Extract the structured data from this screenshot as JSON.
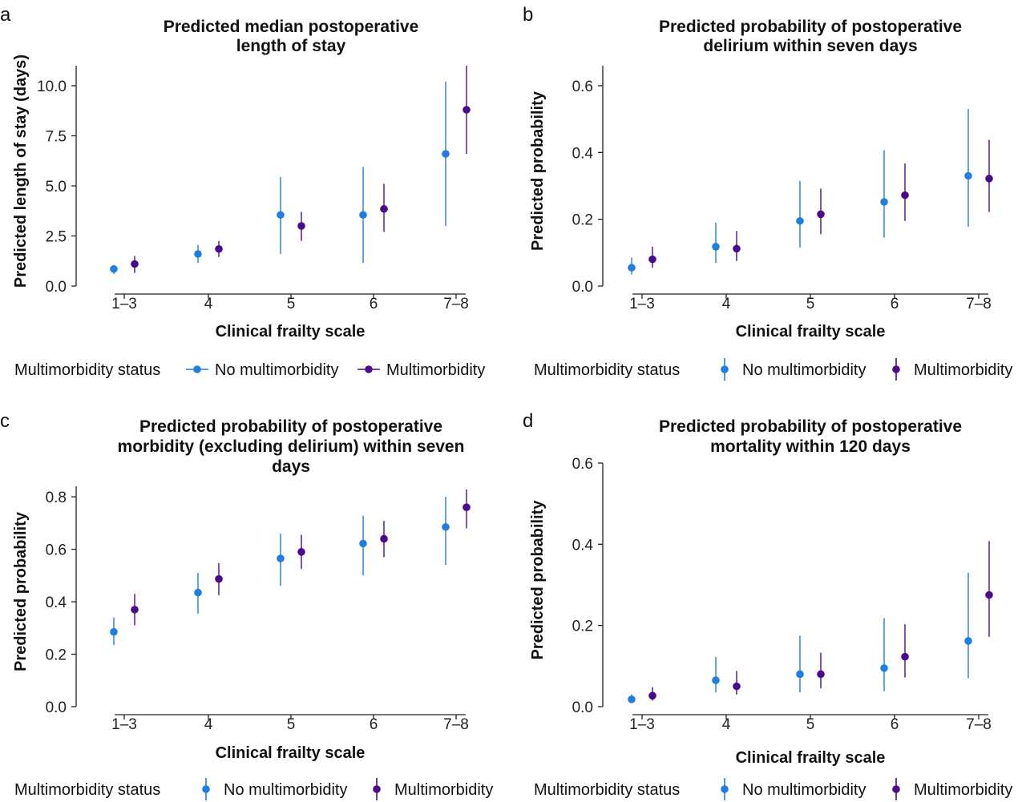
{
  "figure": {
    "legend_title": "Multimorbidity status",
    "colors": {
      "no_multimorbidity": "#1f7fe0",
      "multimorbidity": "#4b0a8a"
    }
  },
  "chart_data": [
    {
      "panel": "a",
      "type": "scatter",
      "title_lines": [
        "Predicted median postoperative",
        "length of stay"
      ],
      "xlabel": "Clinical frailty scale",
      "ylabel": "Predicted length of stay (days)",
      "categories": [
        "1–3",
        "4",
        "5",
        "6",
        "7–8"
      ],
      "ylim": [
        0,
        11
      ],
      "yticks": [
        0,
        2.5,
        5,
        7.5,
        10
      ],
      "ytick_labels": [
        "0.0",
        "2.5",
        "5.0",
        "7.5",
        "10.0"
      ],
      "legend_style": "line",
      "series": [
        {
          "name": "No multimorbidity",
          "color": "#1f7fe0",
          "values": [
            0.85,
            1.6,
            3.55,
            3.55,
            6.6
          ],
          "lower": [
            0.6,
            1.15,
            1.6,
            1.15,
            3.0
          ],
          "upper": [
            1.05,
            2.05,
            5.45,
            5.95,
            10.2
          ]
        },
        {
          "name": "Multimorbidity",
          "color": "#4b0a8a",
          "values": [
            1.1,
            1.85,
            3.0,
            3.85,
            8.8
          ],
          "lower": [
            0.65,
            1.45,
            2.25,
            2.7,
            6.6
          ],
          "upper": [
            1.5,
            2.25,
            3.7,
            5.1,
            11.0
          ]
        }
      ]
    },
    {
      "panel": "b",
      "type": "scatter",
      "title_lines": [
        "Predicted probability of postoperative",
        "delirium within seven days"
      ],
      "xlabel": "Clinical frailty scale",
      "ylabel": "Predicted probability",
      "categories": [
        "1–3",
        "4",
        "5",
        "6",
        "7–8"
      ],
      "ylim": [
        0,
        0.66
      ],
      "yticks": [
        0,
        0.2,
        0.4,
        0.6
      ],
      "ytick_labels": [
        "0.0",
        "0.2",
        "0.4",
        "0.6"
      ],
      "legend_style": "vertical",
      "series": [
        {
          "name": "No multimorbidity",
          "color": "#1f7fe0",
          "values": [
            0.055,
            0.118,
            0.195,
            0.252,
            0.33
          ],
          "lower": [
            0.035,
            0.07,
            0.115,
            0.145,
            0.178
          ],
          "upper": [
            0.085,
            0.19,
            0.315,
            0.407,
            0.53
          ]
        },
        {
          "name": "Multimorbidity",
          "color": "#4b0a8a",
          "values": [
            0.08,
            0.112,
            0.215,
            0.272,
            0.322
          ],
          "lower": [
            0.055,
            0.075,
            0.155,
            0.195,
            0.222
          ],
          "upper": [
            0.118,
            0.165,
            0.292,
            0.367,
            0.438
          ]
        }
      ]
    },
    {
      "panel": "c",
      "type": "scatter",
      "title_lines": [
        "Predicted probability of postoperative",
        "morbidity (excluding delirium) within seven",
        "days"
      ],
      "xlabel": "Clinical frailty scale",
      "ylabel": "Predicted probability",
      "categories": [
        "1–3",
        "4",
        "5",
        "6",
        "7–8"
      ],
      "ylim": [
        0,
        0.84
      ],
      "yticks": [
        0,
        0.2,
        0.4,
        0.6,
        0.8
      ],
      "ytick_labels": [
        "0.0",
        "0.2",
        "0.4",
        "0.6",
        "0.8"
      ],
      "legend_style": "vertical",
      "series": [
        {
          "name": "No multimorbidity",
          "color": "#1f7fe0",
          "values": [
            0.285,
            0.435,
            0.565,
            0.622,
            0.685
          ],
          "lower": [
            0.235,
            0.355,
            0.46,
            0.5,
            0.54
          ],
          "upper": [
            0.34,
            0.51,
            0.66,
            0.728,
            0.8
          ]
        },
        {
          "name": "Multimorbidity",
          "color": "#4b0a8a",
          "values": [
            0.37,
            0.487,
            0.59,
            0.64,
            0.76
          ],
          "lower": [
            0.31,
            0.425,
            0.525,
            0.57,
            0.68
          ],
          "upper": [
            0.43,
            0.547,
            0.655,
            0.708,
            0.828
          ]
        }
      ]
    },
    {
      "panel": "d",
      "type": "scatter",
      "title_lines": [
        "Predicted probability of postoperative",
        "mortality within 120 days"
      ],
      "xlabel": "Clinical frailty scale",
      "ylabel": "Predicted probability",
      "categories": [
        "1–3",
        "4",
        "5",
        "6",
        "7–8"
      ],
      "ylim": [
        0,
        0.6
      ],
      "yticks": [
        0,
        0.2,
        0.4,
        0.6
      ],
      "ytick_labels": [
        "0.0",
        "0.2",
        "0.4",
        "0.6"
      ],
      "legend_style": "vertical",
      "series": [
        {
          "name": "No multimorbidity",
          "color": "#1f7fe0",
          "values": [
            0.018,
            0.065,
            0.08,
            0.095,
            0.162
          ],
          "lower": [
            0.01,
            0.035,
            0.035,
            0.038,
            0.07
          ],
          "upper": [
            0.03,
            0.123,
            0.175,
            0.218,
            0.33
          ]
        },
        {
          "name": "Multimorbidity",
          "color": "#4b0a8a",
          "values": [
            0.027,
            0.05,
            0.08,
            0.123,
            0.275
          ],
          "lower": [
            0.015,
            0.03,
            0.045,
            0.072,
            0.172
          ],
          "upper": [
            0.048,
            0.088,
            0.133,
            0.203,
            0.408
          ]
        }
      ]
    }
  ]
}
